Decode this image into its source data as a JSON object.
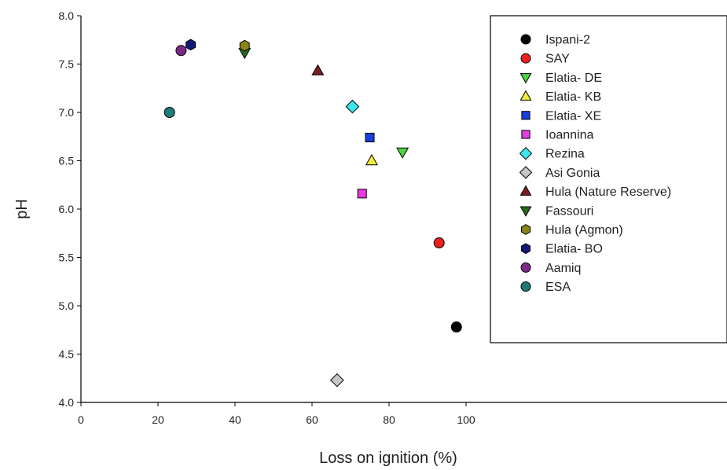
{
  "chart_data": {
    "type": "scatter",
    "title": "",
    "xlabel": "Loss on ignition (%)",
    "ylabel": "pH",
    "xlim": [
      0,
      100
    ],
    "ylim": [
      4.0,
      8.0
    ],
    "x_ticks": [
      0,
      20,
      40,
      60,
      80,
      100
    ],
    "x_tick_labels": [
      "0",
      "20",
      "40",
      "60",
      "80",
      "100"
    ],
    "y_ticks": [
      4.0,
      4.5,
      5.0,
      5.5,
      6.0,
      6.5,
      7.0,
      7.5,
      8.0
    ],
    "y_tick_labels": [
      "4.0",
      "4.5",
      "5.0",
      "5.5",
      "6.0",
      "6.5",
      "7.0",
      "7.5",
      "8.0"
    ],
    "grid": false,
    "legend_position": "top-right",
    "series": [
      {
        "name": "Ispani-2",
        "marker": "circle",
        "color": "#000000",
        "x": 97.5,
        "y": 4.78
      },
      {
        "name": "SAY",
        "marker": "circle",
        "color": "#e8201e",
        "x": 93,
        "y": 5.65
      },
      {
        "name": "Elatia- DE",
        "marker": "triangle-down",
        "color": "#4cd43c",
        "x": 83.5,
        "y": 6.59
      },
      {
        "name": "Elatia- KB",
        "marker": "triangle-up",
        "color": "#f2ee3a",
        "x": 75.5,
        "y": 6.5
      },
      {
        "name": "Elatia- XE",
        "marker": "square",
        "color": "#1a3fd6",
        "x": 75,
        "y": 6.74
      },
      {
        "name": "Ioannina",
        "marker": "square",
        "color": "#e73ce0",
        "x": 73,
        "y": 6.16
      },
      {
        "name": "Rezina",
        "marker": "diamond",
        "color": "#3ce6ee",
        "x": 70.5,
        "y": 7.06
      },
      {
        "name": "Asi Gonia",
        "marker": "diamond",
        "color": "#c6c6c6",
        "x": 66.5,
        "y": 4.23
      },
      {
        "name": "Hula (Nature Reserve)",
        "marker": "triangle-up",
        "color": "#7a1e1e",
        "x": 61.5,
        "y": 7.43
      },
      {
        "name": "Fassouri",
        "marker": "triangle-down",
        "color": "#286a1c",
        "x": 42.5,
        "y": 7.62
      },
      {
        "name": "Hula (Agmon)",
        "marker": "hexagon",
        "color": "#8a8418",
        "x": 42.5,
        "y": 7.69
      },
      {
        "name": "Elatia- BO",
        "marker": "hexagon",
        "color": "#101a7a",
        "x": 28.5,
        "y": 7.7
      },
      {
        "name": "Aamiq",
        "marker": "circle",
        "color": "#7b2a8a",
        "x": 26,
        "y": 7.64
      },
      {
        "name": "ESA",
        "marker": "circle",
        "color": "#1f7a7a",
        "x": 23,
        "y": 7.0
      }
    ]
  }
}
